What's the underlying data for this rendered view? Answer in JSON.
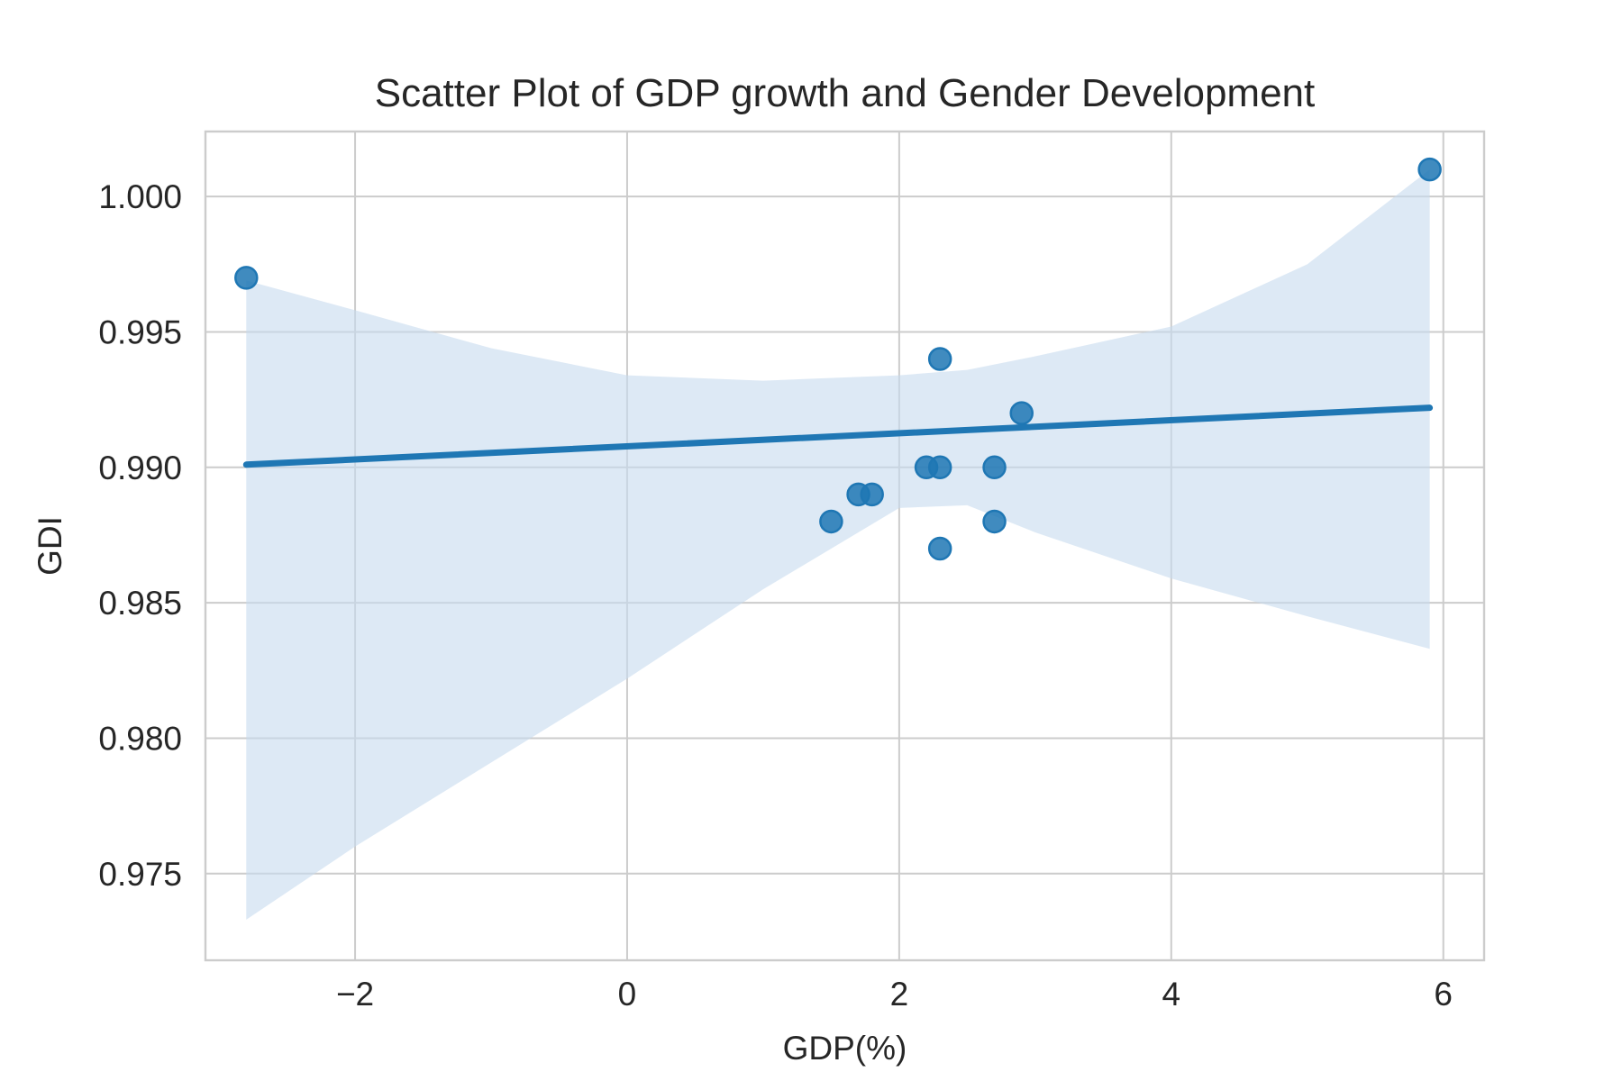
{
  "chart_data": {
    "type": "scatter",
    "title": "Scatter Plot of GDP growth and Gender Development",
    "xlabel": "GDP(%)",
    "ylabel": "GDI",
    "xlim": [
      -3.1,
      6.3
    ],
    "ylim": [
      0.9718,
      1.0024
    ],
    "x_ticks": [
      -2,
      0,
      2,
      4,
      6
    ],
    "x_tick_labels": [
      "−2",
      "0",
      "2",
      "4",
      "6"
    ],
    "y_ticks": [
      0.975,
      0.98,
      0.985,
      0.99,
      0.995,
      1.0
    ],
    "y_tick_labels": [
      "0.975",
      "0.980",
      "0.985",
      "0.990",
      "0.995",
      "1.000"
    ],
    "grid": true,
    "point_color": "#1f77b4",
    "line_color": "#1f77b4",
    "band_color": "#c6dbef",
    "points": [
      {
        "x": -2.8,
        "y": 0.997
      },
      {
        "x": 1.5,
        "y": 0.988
      },
      {
        "x": 1.7,
        "y": 0.989
      },
      {
        "x": 1.8,
        "y": 0.989
      },
      {
        "x": 2.2,
        "y": 0.99
      },
      {
        "x": 2.3,
        "y": 0.99
      },
      {
        "x": 2.3,
        "y": 0.994
      },
      {
        "x": 2.3,
        "y": 0.987
      },
      {
        "x": 2.7,
        "y": 0.99
      },
      {
        "x": 2.7,
        "y": 0.988
      },
      {
        "x": 2.9,
        "y": 0.992
      },
      {
        "x": 5.9,
        "y": 1.001
      }
    ],
    "regression_line": [
      {
        "x": -2.8,
        "y": 0.9901
      },
      {
        "x": 5.9,
        "y": 0.9922
      }
    ],
    "confidence_band": {
      "x": [
        -2.8,
        -2.0,
        -1.0,
        0.0,
        1.0,
        2.0,
        2.5,
        3.0,
        4.0,
        5.0,
        5.9
      ],
      "upper": [
        0.9969,
        0.9958,
        0.9944,
        0.9934,
        0.9932,
        0.9934,
        0.9936,
        0.9941,
        0.9952,
        0.9975,
        1.001
      ],
      "lower": [
        0.9733,
        0.976,
        0.9791,
        0.9822,
        0.9855,
        0.9885,
        0.9886,
        0.9876,
        0.9859,
        0.9845,
        0.9833
      ]
    }
  }
}
